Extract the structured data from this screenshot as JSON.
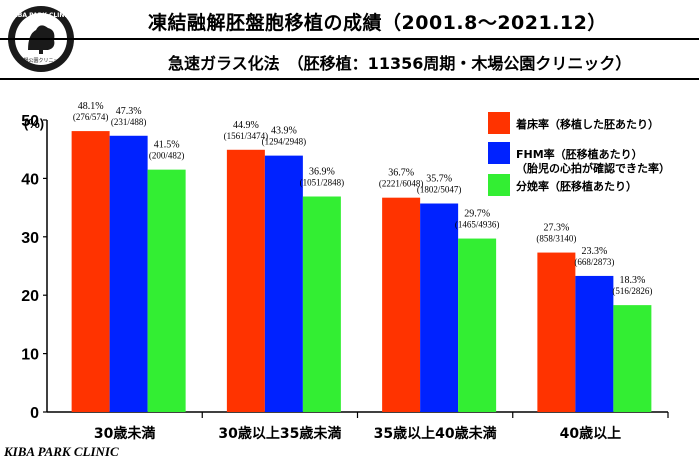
{
  "header": {
    "title": "凍結融解胚盤胞移植の成績（2001.8～2021.12）",
    "subtitle": "急速ガラス化法　（胚移植：11356周期・木場公園クリニック）",
    "logo_text_top": "KIBA PARK CLINIC",
    "logo_text_bottom": "木場公園クリニック"
  },
  "footer": {
    "text": "KIBA PARK CLINIC"
  },
  "chart_data": {
    "type": "bar",
    "ylabel": "(%)",
    "ylim": [
      0,
      50
    ],
    "yticks": [
      "0",
      "10",
      "20",
      "30",
      "40",
      "50"
    ],
    "categories": [
      "30歳未満",
      "30歳以上35歳未満",
      "35歳以上40歳未満",
      "40歳以上"
    ],
    "series": [
      {
        "name": "着床率（移植した胚あたり）",
        "color": "#ff3300",
        "values": [
          48.1,
          44.9,
          36.7,
          27.3
        ],
        "labels": [
          "48.1%",
          "44.9%",
          "36.7%",
          "27.3%"
        ],
        "counts": [
          "(276/574)",
          "(1561/3474)",
          "(2221/6048)",
          "(858/3140)"
        ]
      },
      {
        "name": "FHM率（胚移植あたり）",
        "name_line2": "（胎児の心拍が確認できた率）",
        "color": "#0022ff",
        "values": [
          47.3,
          43.9,
          35.7,
          23.3
        ],
        "labels": [
          "47.3%",
          "43.9%",
          "35.7%",
          "23.3%"
        ],
        "counts": [
          "(231/488)",
          "(1294/2948)",
          "(1802/5047)",
          "(668/2873)"
        ]
      },
      {
        "name": "分娩率（胚移植あたり）",
        "color": "#33ee33",
        "values": [
          41.5,
          36.9,
          29.7,
          18.3
        ],
        "labels": [
          "41.5%",
          "36.9%",
          "29.7%",
          "18.3%"
        ],
        "counts": [
          "(200/482)",
          "(1051/2848)",
          "(1465/4936)",
          "(516/2826)"
        ]
      }
    ],
    "legend_position": "top-right"
  }
}
